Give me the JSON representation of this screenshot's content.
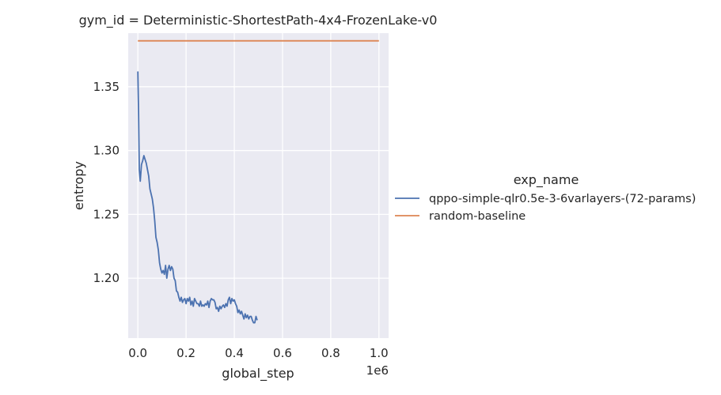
{
  "chart_data": {
    "type": "line",
    "title": "gym_id = Deterministic-ShortestPath-4x4-FrozenLake-v0",
    "xlabel": "global_step",
    "ylabel": "entropy",
    "x_offset_text": "1e6",
    "xlim": [
      -0.04,
      1.04
    ],
    "ylim": [
      1.153,
      1.392
    ],
    "xticks": [
      0.0,
      0.2,
      0.4,
      0.6,
      0.8,
      1.0
    ],
    "xtick_labels": [
      "0.0",
      "0.2",
      "0.4",
      "0.6",
      "0.8",
      "1.0"
    ],
    "yticks": [
      1.2,
      1.25,
      1.3,
      1.35
    ],
    "ytick_labels": [
      "1.20",
      "1.25",
      "1.30",
      "1.35"
    ],
    "grid": true,
    "legend": {
      "title": "exp_name",
      "placement": "right"
    },
    "series": [
      {
        "name": "qppo-simple-qlr0.5e-3-6varlayers-(72-params)",
        "color": "#4c72b0",
        "x": [
          0.0,
          0.003,
          0.006,
          0.01,
          0.015,
          0.02,
          0.025,
          0.03,
          0.035,
          0.04,
          0.045,
          0.05,
          0.055,
          0.06,
          0.065,
          0.07,
          0.075,
          0.08,
          0.085,
          0.09,
          0.095,
          0.1,
          0.105,
          0.11,
          0.115,
          0.12,
          0.125,
          0.13,
          0.135,
          0.14,
          0.145,
          0.15,
          0.155,
          0.16,
          0.165,
          0.17,
          0.175,
          0.18,
          0.185,
          0.19,
          0.195,
          0.2,
          0.205,
          0.21,
          0.215,
          0.22,
          0.225,
          0.23,
          0.235,
          0.24,
          0.245,
          0.25,
          0.255,
          0.26,
          0.265,
          0.27,
          0.275,
          0.28,
          0.285,
          0.29,
          0.295,
          0.3,
          0.305,
          0.31,
          0.315,
          0.32,
          0.325,
          0.33,
          0.335,
          0.34,
          0.345,
          0.35,
          0.355,
          0.36,
          0.365,
          0.37,
          0.375,
          0.38,
          0.385,
          0.39,
          0.395,
          0.4,
          0.405,
          0.41,
          0.415,
          0.42,
          0.425,
          0.43,
          0.435,
          0.44,
          0.445,
          0.45,
          0.455,
          0.46,
          0.465,
          0.47,
          0.475,
          0.48,
          0.485,
          0.49,
          0.495
        ],
        "y": [
          1.362,
          1.33,
          1.285,
          1.276,
          1.289,
          1.292,
          1.296,
          1.293,
          1.29,
          1.285,
          1.28,
          1.27,
          1.266,
          1.262,
          1.255,
          1.245,
          1.232,
          1.228,
          1.222,
          1.212,
          1.207,
          1.204,
          1.206,
          1.203,
          1.21,
          1.2,
          1.207,
          1.21,
          1.206,
          1.209,
          1.207,
          1.2,
          1.198,
          1.19,
          1.189,
          1.185,
          1.182,
          1.185,
          1.181,
          1.183,
          1.184,
          1.18,
          1.184,
          1.182,
          1.185,
          1.179,
          1.182,
          1.178,
          1.184,
          1.182,
          1.18,
          1.18,
          1.178,
          1.182,
          1.178,
          1.179,
          1.178,
          1.18,
          1.179,
          1.182,
          1.177,
          1.182,
          1.184,
          1.183,
          1.183,
          1.181,
          1.176,
          1.177,
          1.174,
          1.178,
          1.176,
          1.178,
          1.179,
          1.177,
          1.18,
          1.178,
          1.183,
          1.185,
          1.18,
          1.184,
          1.182,
          1.183,
          1.18,
          1.178,
          1.173,
          1.175,
          1.172,
          1.174,
          1.171,
          1.168,
          1.172,
          1.169,
          1.171,
          1.168,
          1.17,
          1.17,
          1.167,
          1.165,
          1.165,
          1.17,
          1.167
        ]
      },
      {
        "name": "random-baseline",
        "color": "#dd8452",
        "x": [
          0.0,
          1.0
        ],
        "y": [
          1.386,
          1.386
        ]
      }
    ]
  }
}
